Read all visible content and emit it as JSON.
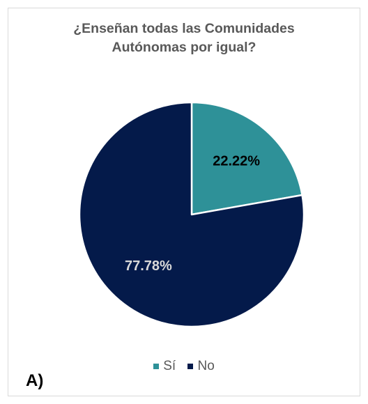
{
  "chart_data": {
    "type": "pie",
    "title_lines": [
      "¿Enseñan todas las Comunidades",
      "Autónomas por igual?"
    ],
    "categories": [
      "Sí",
      "No"
    ],
    "values": [
      22.22,
      77.78
    ],
    "value_labels": [
      "22.22%",
      "77.78%"
    ],
    "colors": [
      "#2e9198",
      "#041a4a"
    ],
    "label_colors": [
      "#000000",
      "#d9d9d9"
    ],
    "legend": {
      "position": "bottom",
      "items": [
        "Sí",
        "No"
      ]
    }
  },
  "panel_label": "A)"
}
